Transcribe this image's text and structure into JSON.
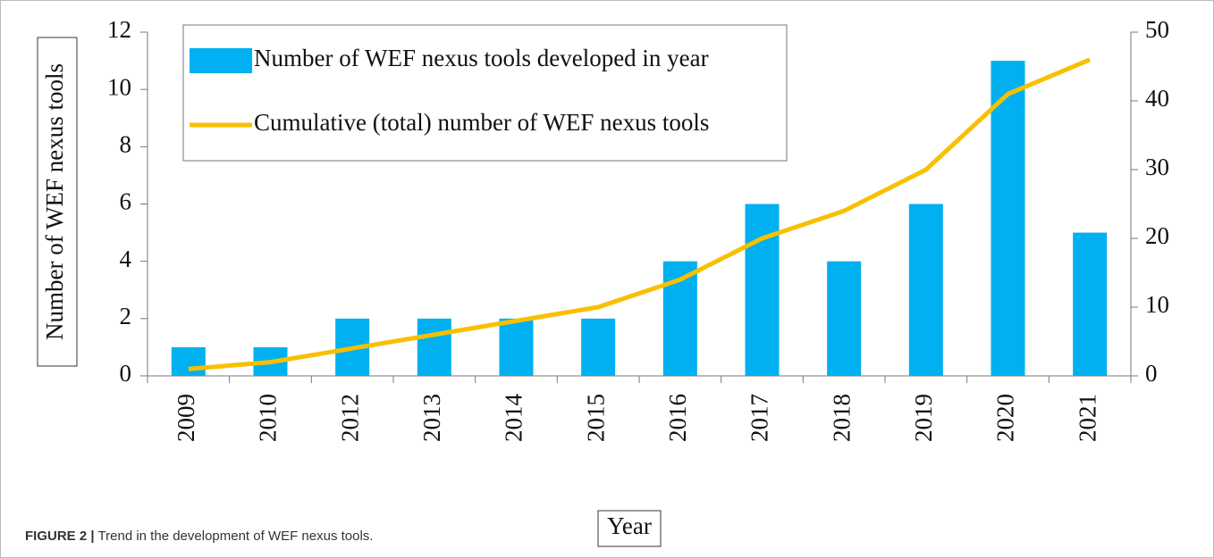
{
  "chart_data": {
    "type": "bar",
    "categories": [
      "2009",
      "2010",
      "2012",
      "2013",
      "2014",
      "2015",
      "2016",
      "2017",
      "2018",
      "2019",
      "2020",
      "2021"
    ],
    "series": [
      {
        "name": "Number of WEF nexus tools developed in year",
        "type": "bar",
        "color": "#00b0f0",
        "values": [
          1,
          1,
          2,
          2,
          2,
          2,
          4,
          6,
          4,
          6,
          11,
          5
        ]
      },
      {
        "name": "Cumulative (total) number of WEF nexus tools",
        "type": "line",
        "axis": "y2",
        "color": "#f8c000",
        "values": [
          1,
          2,
          4,
          6,
          8,
          10,
          14,
          20,
          24,
          30,
          41,
          46
        ]
      }
    ],
    "ylabel": "Number of WEF nexus tools",
    "xlabel": "Year",
    "ylim": [
      0,
      12
    ],
    "yticks": [
      0,
      2,
      4,
      6,
      8,
      10,
      12
    ],
    "y2lim": [
      0,
      50
    ],
    "y2ticks": [
      0,
      10,
      20,
      30,
      40,
      50
    ],
    "legend": "top-left",
    "caption": {
      "label": "FIGURE 2 |",
      "text": "Trend in the development of WEF nexus tools."
    }
  }
}
